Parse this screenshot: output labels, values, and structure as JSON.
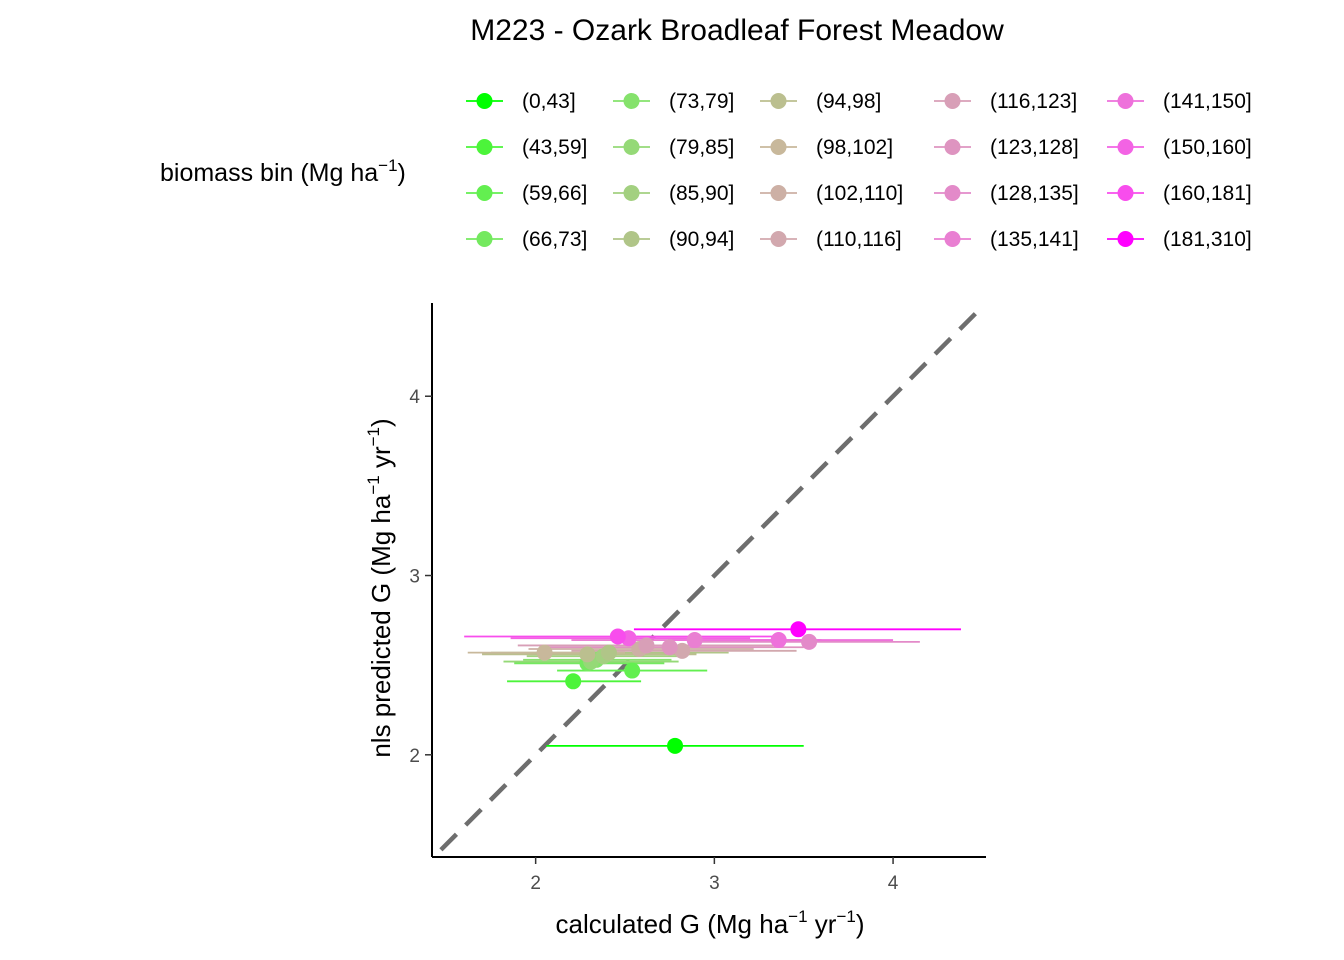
{
  "chart_data": {
    "type": "scatter",
    "title": "M223 - Ozark Broadleaf Forest Meadow",
    "xlabel": {
      "main": "calculated G (Mg ha",
      "sup1": "−1",
      "mid": " yr",
      "sup2": "−1",
      "end": ")"
    },
    "ylabel": {
      "main": "nls predicted G (Mg ha",
      "sup1": "−1",
      "mid": " yr",
      "sup2": "−1",
      "end": ")"
    },
    "legend": {
      "title": {
        "main": "biomass bin (Mg ha",
        "sup": "−1",
        "end": ")"
      },
      "placement": "top"
    },
    "xlim": [
      1.42,
      4.52
    ],
    "ylim": [
      1.43,
      4.52
    ],
    "x_ticks": [
      {
        "value": 2,
        "label": "2"
      },
      {
        "value": 3,
        "label": "3"
      },
      {
        "value": 4,
        "label": "4"
      }
    ],
    "y_ticks": [
      {
        "value": 2,
        "label": "2"
      },
      {
        "value": 3,
        "label": "3"
      },
      {
        "value": 4,
        "label": "4"
      }
    ],
    "grid": false,
    "reference_line": {
      "type": "identity",
      "style": "dashed",
      "color": "#6e6e6e"
    },
    "series": [
      {
        "name": "(0,43]",
        "color": "#00ff00",
        "x": 2.78,
        "y": 2.05,
        "xmin": 2.06,
        "xmax": 3.5
      },
      {
        "name": "(43,59]",
        "color": "#4cf43a",
        "x": 2.21,
        "y": 2.41,
        "xmin": 1.84,
        "xmax": 2.59
      },
      {
        "name": "(59,66]",
        "color": "#63ef50",
        "x": 2.54,
        "y": 2.47,
        "xmin": 2.12,
        "xmax": 2.96
      },
      {
        "name": "(66,73]",
        "color": "#74e95f",
        "x": 2.29,
        "y": 2.51,
        "xmin": 1.88,
        "xmax": 2.72
      },
      {
        "name": "(73,79]",
        "color": "#85e26c",
        "x": 2.34,
        "y": 2.53,
        "xmin": 1.93,
        "xmax": 2.76
      },
      {
        "name": "(79,85]",
        "color": "#95d977",
        "x": 2.31,
        "y": 2.52,
        "xmin": 1.82,
        "xmax": 2.8
      },
      {
        "name": "(85,90]",
        "color": "#a3d080",
        "x": 2.38,
        "y": 2.55,
        "xmin": 1.95,
        "xmax": 2.83
      },
      {
        "name": "(90,94]",
        "color": "#b0c588",
        "x": 2.41,
        "y": 2.57,
        "xmin": 1.75,
        "xmax": 3.08
      },
      {
        "name": "(94,98]",
        "color": "#bbbf8f",
        "x": 2.29,
        "y": 2.56,
        "xmin": 1.7,
        "xmax": 2.9
      },
      {
        "name": "(98,102]",
        "color": "#c8b89b",
        "x": 2.05,
        "y": 2.57,
        "xmin": 1.62,
        "xmax": 2.5
      },
      {
        "name": "(102,110]",
        "color": "#cdb0a5",
        "x": 2.58,
        "y": 2.59,
        "xmin": 1.96,
        "xmax": 3.22
      },
      {
        "name": "(110,116]",
        "color": "#d2a8ae",
        "x": 2.82,
        "y": 2.58,
        "xmin": 2.2,
        "xmax": 3.46
      },
      {
        "name": "(116,123]",
        "color": "#d89fb7",
        "x": 2.62,
        "y": 2.61,
        "xmin": 1.9,
        "xmax": 3.33
      },
      {
        "name": "(123,128]",
        "color": "#de94c0",
        "x": 2.75,
        "y": 2.6,
        "xmin": 2.02,
        "xmax": 3.5
      },
      {
        "name": "(128,135]",
        "color": "#e38ac9",
        "x": 3.53,
        "y": 2.63,
        "xmin": 2.93,
        "xmax": 4.15
      },
      {
        "name": "(135,141]",
        "color": "#e97fd2",
        "x": 2.89,
        "y": 2.64,
        "xmin": 2.2,
        "xmax": 3.6
      },
      {
        "name": "(141,150]",
        "color": "#ee71db",
        "x": 3.36,
        "y": 2.64,
        "xmin": 2.74,
        "xmax": 4.0
      },
      {
        "name": "(150,160]",
        "color": "#f363e4",
        "x": 2.52,
        "y": 2.65,
        "xmin": 1.86,
        "xmax": 3.2
      },
      {
        "name": "(160,181]",
        "color": "#f84ded",
        "x": 2.46,
        "y": 2.66,
        "xmin": 1.6,
        "xmax": 3.35
      },
      {
        "name": "(181,310]",
        "color": "#ff00ff",
        "x": 3.47,
        "y": 2.7,
        "xmin": 2.55,
        "xmax": 4.38
      }
    ]
  }
}
